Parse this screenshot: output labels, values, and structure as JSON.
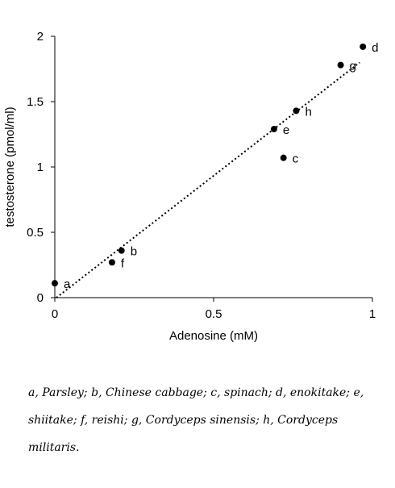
{
  "chart_data": {
    "type": "scatter",
    "xlabel": "Adenosine (mM)",
    "ylabel": "testosterone (pmol/ml)",
    "xlim": [
      0,
      1
    ],
    "ylim": [
      0,
      2
    ],
    "x_ticks": [
      "0",
      "0.5",
      "1"
    ],
    "y_ticks": [
      "0",
      "0.5",
      "1",
      "1.5",
      "2"
    ],
    "trendline": {
      "style": "dotted",
      "x": [
        0.005,
        0.96
      ],
      "y": [
        0.0,
        1.8
      ]
    },
    "points": [
      {
        "label": "a",
        "x": 0.0,
        "y": 0.11
      },
      {
        "label": "b",
        "x": 0.21,
        "y": 0.36
      },
      {
        "label": "c",
        "x": 0.72,
        "y": 1.07
      },
      {
        "label": "d",
        "x": 0.97,
        "y": 1.92
      },
      {
        "label": "e",
        "x": 0.69,
        "y": 1.29
      },
      {
        "label": "f",
        "x": 0.18,
        "y": 0.27
      },
      {
        "label": "g",
        "x": 0.9,
        "y": 1.78
      },
      {
        "label": "h",
        "x": 0.76,
        "y": 1.43
      }
    ]
  },
  "caption": "a, Parsley; b, Chinese cabbage; c, spinach; d, enokitake; e, shiitake; f, reishi; g, Cordyceps sinensis; h, Cordyceps militaris."
}
